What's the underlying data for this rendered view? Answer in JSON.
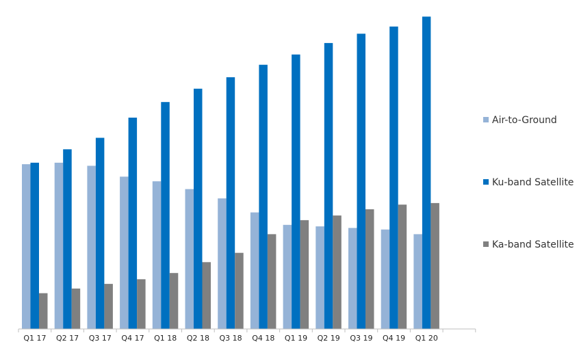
{
  "chart_data": {
    "type": "bar",
    "categories": [
      "Q1 17",
      "Q2 17",
      "Q3 17",
      "Q4 17",
      "Q1 18",
      "Q2 18",
      "Q3 18",
      "Q4 18",
      "Q1 19",
      "Q2 19",
      "Q3 19",
      "Q4 19",
      "Q1 20"
    ],
    "series": [
      {
        "name": "Air-to-Ground",
        "color": "#95b3d7",
        "values": [
          53,
          53.5,
          52.5,
          49,
          47.5,
          45,
          42,
          37.5,
          33.5,
          33,
          32.5,
          32,
          30.5
        ]
      },
      {
        "name": "Ku-band Satellite",
        "color": "#0070c0",
        "values": [
          53.5,
          57.8,
          61.5,
          68,
          73,
          77.3,
          81,
          85,
          88.3,
          92,
          95,
          97.3,
          100.5
        ]
      },
      {
        "name": "Ka-band Satellite",
        "color": "#808080",
        "values": [
          11.5,
          13,
          14.5,
          16,
          18,
          21.5,
          24.5,
          30.5,
          35,
          36.5,
          38.5,
          40,
          40.5
        ]
      }
    ],
    "ylim": [
      0,
      101
    ],
    "grid": false,
    "legend_position": "right",
    "title": "",
    "xlabel": "",
    "ylabel": ""
  }
}
